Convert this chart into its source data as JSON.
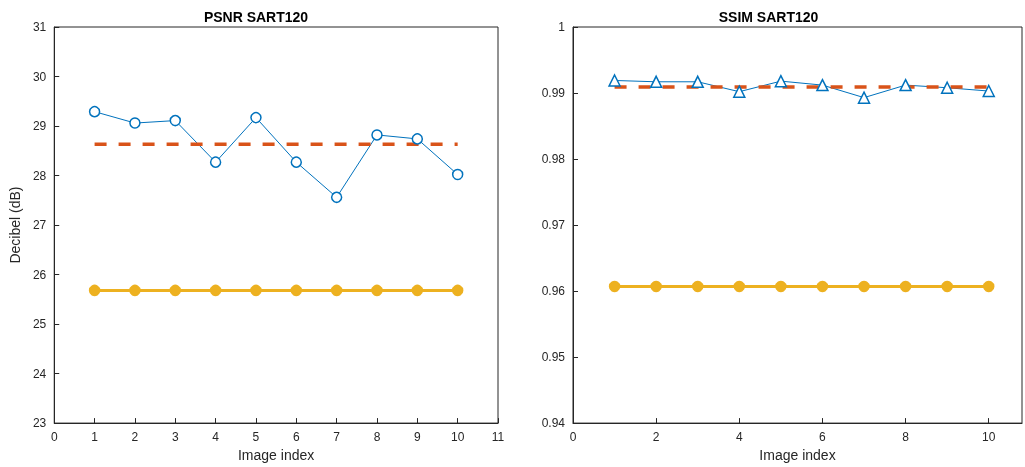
{
  "chart_data": [
    {
      "type": "line",
      "title": "PSNR SART120",
      "xlabel": "Image index",
      "ylabel": "Decibel (dB)",
      "x": [
        1,
        2,
        3,
        4,
        5,
        6,
        7,
        8,
        9,
        10
      ],
      "xlim": [
        0,
        11
      ],
      "xticks": [
        0,
        1,
        2,
        3,
        4,
        5,
        6,
        7,
        8,
        9,
        10,
        11
      ],
      "ylim": [
        23,
        31
      ],
      "yticks": [
        23,
        24,
        25,
        26,
        27,
        28,
        29,
        30,
        31
      ],
      "series": [
        {
          "color": "#0072bd",
          "marker": "circle",
          "line_style": "solid",
          "values": [
            29.29,
            29.06,
            29.11,
            28.27,
            29.17,
            28.27,
            27.56,
            28.82,
            28.74,
            28.02
          ]
        },
        {
          "color": "#d95319",
          "marker": "none",
          "line_style": "dashed",
          "values": [
            28.63,
            28.63,
            28.63,
            28.63,
            28.63,
            28.63,
            28.63,
            28.63,
            28.63,
            28.63
          ]
        },
        {
          "color": "#edb120",
          "marker": "circle",
          "line_style": "solid",
          "values": [
            25.68,
            25.68,
            25.68,
            25.68,
            25.68,
            25.68,
            25.68,
            25.68,
            25.68,
            25.68
          ]
        }
      ]
    },
    {
      "type": "line",
      "title": "SSIM SART120",
      "xlabel": "Image index",
      "x": [
        1,
        2,
        3,
        4,
        5,
        6,
        7,
        8,
        9,
        10
      ],
      "xlim": [
        0,
        10.8
      ],
      "xticks": [
        0,
        2,
        4,
        6,
        8,
        10
      ],
      "ylim": [
        0.94,
        1
      ],
      "yticks": [
        0.94,
        0.95,
        0.96,
        0.97,
        0.98,
        0.99,
        1
      ],
      "series": [
        {
          "color": "#0072bd",
          "marker": "triangle",
          "line_style": "solid",
          "values": [
            0.9919,
            0.9917,
            0.9917,
            0.9902,
            0.9918,
            0.9912,
            0.9893,
            0.9912,
            0.9908,
            0.9903
          ]
        },
        {
          "color": "#d95319",
          "marker": "none",
          "line_style": "dashed",
          "values": [
            0.9909,
            0.9909,
            0.9909,
            0.9909,
            0.9909,
            0.9909,
            0.9909,
            0.9909,
            0.9909,
            0.9909
          ]
        },
        {
          "color": "#edb120",
          "marker": "circle",
          "line_style": "solid",
          "values": [
            0.9607,
            0.9607,
            0.9607,
            0.9607,
            0.9607,
            0.9607,
            0.9607,
            0.9607,
            0.9607,
            0.9607
          ]
        }
      ]
    }
  ]
}
